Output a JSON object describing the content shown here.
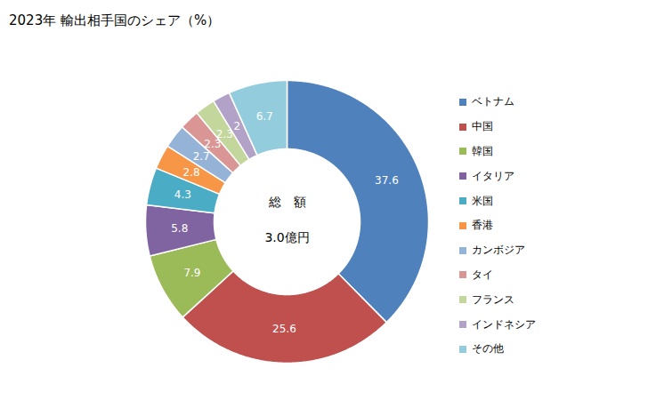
{
  "chart_data": {
    "type": "pie",
    "title": "2023年 輸出相手国のシェア（%）",
    "categories": [
      "ベトナム",
      "中国",
      "韓国",
      "イタリア",
      "米国",
      "香港",
      "カンボジア",
      "タイ",
      "フランス",
      "インドネシア",
      "その他"
    ],
    "values": [
      37.6,
      25.6,
      7.9,
      5.8,
      4.3,
      2.8,
      2.7,
      2.3,
      2.3,
      2.0,
      6.7
    ],
    "colors": [
      "#4f81bd",
      "#c0504d",
      "#9bbb59",
      "#8064a2",
      "#4bacc6",
      "#f79646",
      "#95b3d7",
      "#d99694",
      "#c3d69b",
      "#b3a2c7",
      "#93cddd"
    ],
    "data_labels": true,
    "legend": "right",
    "center_label": "総　額",
    "total_label": "3.0億円"
  }
}
